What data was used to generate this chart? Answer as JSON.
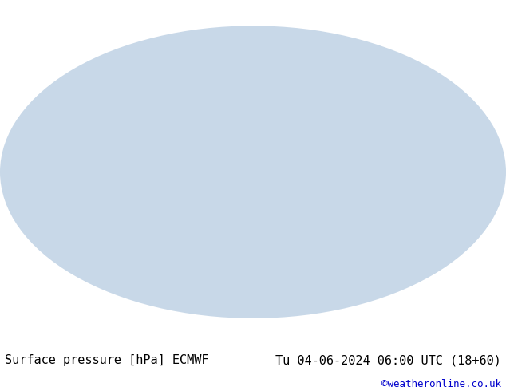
{
  "title_left": "Surface pressure [hPa] ECMWF",
  "title_right": "Tu 04-06-2024 06:00 UTC (18+60)",
  "credit": "©weatheronline.co.uk",
  "bg_color": "#ffffff",
  "map_bg": "#d0d0d0",
  "land_color": "#90c090",
  "ocean_color": "#c8c8c8",
  "contour_low_color": "#0000ff",
  "contour_high_color": "#ff0000",
  "contour_1013_color": "#000000",
  "title_fontsize": 11,
  "credit_fontsize": 9,
  "credit_color": "#0000cc"
}
